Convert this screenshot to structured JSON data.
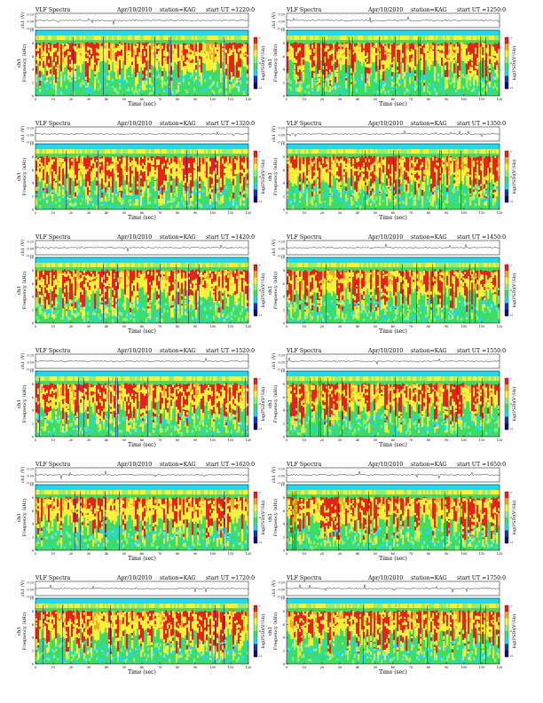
{
  "common": {
    "title": "VLF Spectra",
    "date": "Apr/10/2010",
    "station": "station=KAG",
    "ut_prefix": "start  UT  =",
    "xlabel": "Time  (sec)",
    "ylabel_top": "ch1 (V)",
    "ylabel_spec_a": "ch1",
    "ylabel_spec_b": "Frequency  (kHz)",
    "colorbar_label": "log(PSD)(V²/Hz)",
    "x_ticks": [
      0,
      10,
      20,
      30,
      40,
      50,
      60,
      70,
      80,
      90,
      100,
      110,
      120
    ],
    "y_ticks": [
      0,
      2,
      4,
      6,
      8,
      10
    ],
    "top_y_ticks": [
      "0.20",
      "0.00",
      "-0.20"
    ],
    "colorbar_ticks": [
      "-7",
      "-9",
      "-11"
    ],
    "colors": {
      "cyan": "#22d8f0",
      "green": "#3ddc66",
      "lightgreen": "#8ef07a",
      "yellow": "#f7f23a",
      "orange": "#f5a623",
      "red": "#e8221b",
      "blue": "#1431c8",
      "darkblue": "#0a0a7a"
    }
  },
  "chart_data": [
    {
      "type": "heatmap",
      "start_ut": "1220:0",
      "xlim": [
        0,
        120
      ],
      "ylim": [
        0,
        10
      ],
      "top_ylim": [
        -0.2,
        0.2
      ]
    },
    {
      "type": "heatmap",
      "start_ut": "1250:0",
      "xlim": [
        0,
        120
      ],
      "ylim": [
        0,
        10
      ],
      "top_ylim": [
        -0.2,
        0.2
      ]
    },
    {
      "type": "heatmap",
      "start_ut": "1320:0",
      "xlim": [
        0,
        120
      ],
      "ylim": [
        0,
        10
      ],
      "top_ylim": [
        -0.2,
        0.2
      ]
    },
    {
      "type": "heatmap",
      "start_ut": "1350:0",
      "xlim": [
        0,
        120
      ],
      "ylim": [
        0,
        10
      ],
      "top_ylim": [
        -0.2,
        0.2
      ]
    },
    {
      "type": "heatmap",
      "start_ut": "1420:0",
      "xlim": [
        0,
        120
      ],
      "ylim": [
        0,
        10
      ],
      "top_ylim": [
        -0.2,
        0.2
      ]
    },
    {
      "type": "heatmap",
      "start_ut": "1450:0",
      "xlim": [
        0,
        120
      ],
      "ylim": [
        0,
        10
      ],
      "top_ylim": [
        -0.2,
        0.2
      ]
    },
    {
      "type": "heatmap",
      "start_ut": "1520:0",
      "xlim": [
        0,
        120
      ],
      "ylim": [
        0,
        10
      ],
      "top_ylim": [
        -0.2,
        0.2
      ]
    },
    {
      "type": "heatmap",
      "start_ut": "1550:0",
      "xlim": [
        0,
        120
      ],
      "ylim": [
        0,
        10
      ],
      "top_ylim": [
        -0.2,
        0.2
      ]
    },
    {
      "type": "heatmap",
      "start_ut": "1620:0",
      "xlim": [
        0,
        120
      ],
      "ylim": [
        0,
        10
      ],
      "top_ylim": [
        -0.2,
        0.2
      ]
    },
    {
      "type": "heatmap",
      "start_ut": "1650:0",
      "xlim": [
        0,
        120
      ],
      "ylim": [
        0,
        10
      ],
      "top_ylim": [
        -0.2,
        0.2
      ]
    },
    {
      "type": "heatmap",
      "start_ut": "1720:0",
      "xlim": [
        0,
        120
      ],
      "ylim": [
        0,
        10
      ],
      "top_ylim": [
        -0.2,
        0.2
      ]
    },
    {
      "type": "heatmap",
      "start_ut": "1750:0",
      "xlim": [
        0,
        120
      ],
      "ylim": [
        0,
        10
      ],
      "top_ylim": [
        -0.2,
        0.2
      ]
    }
  ]
}
